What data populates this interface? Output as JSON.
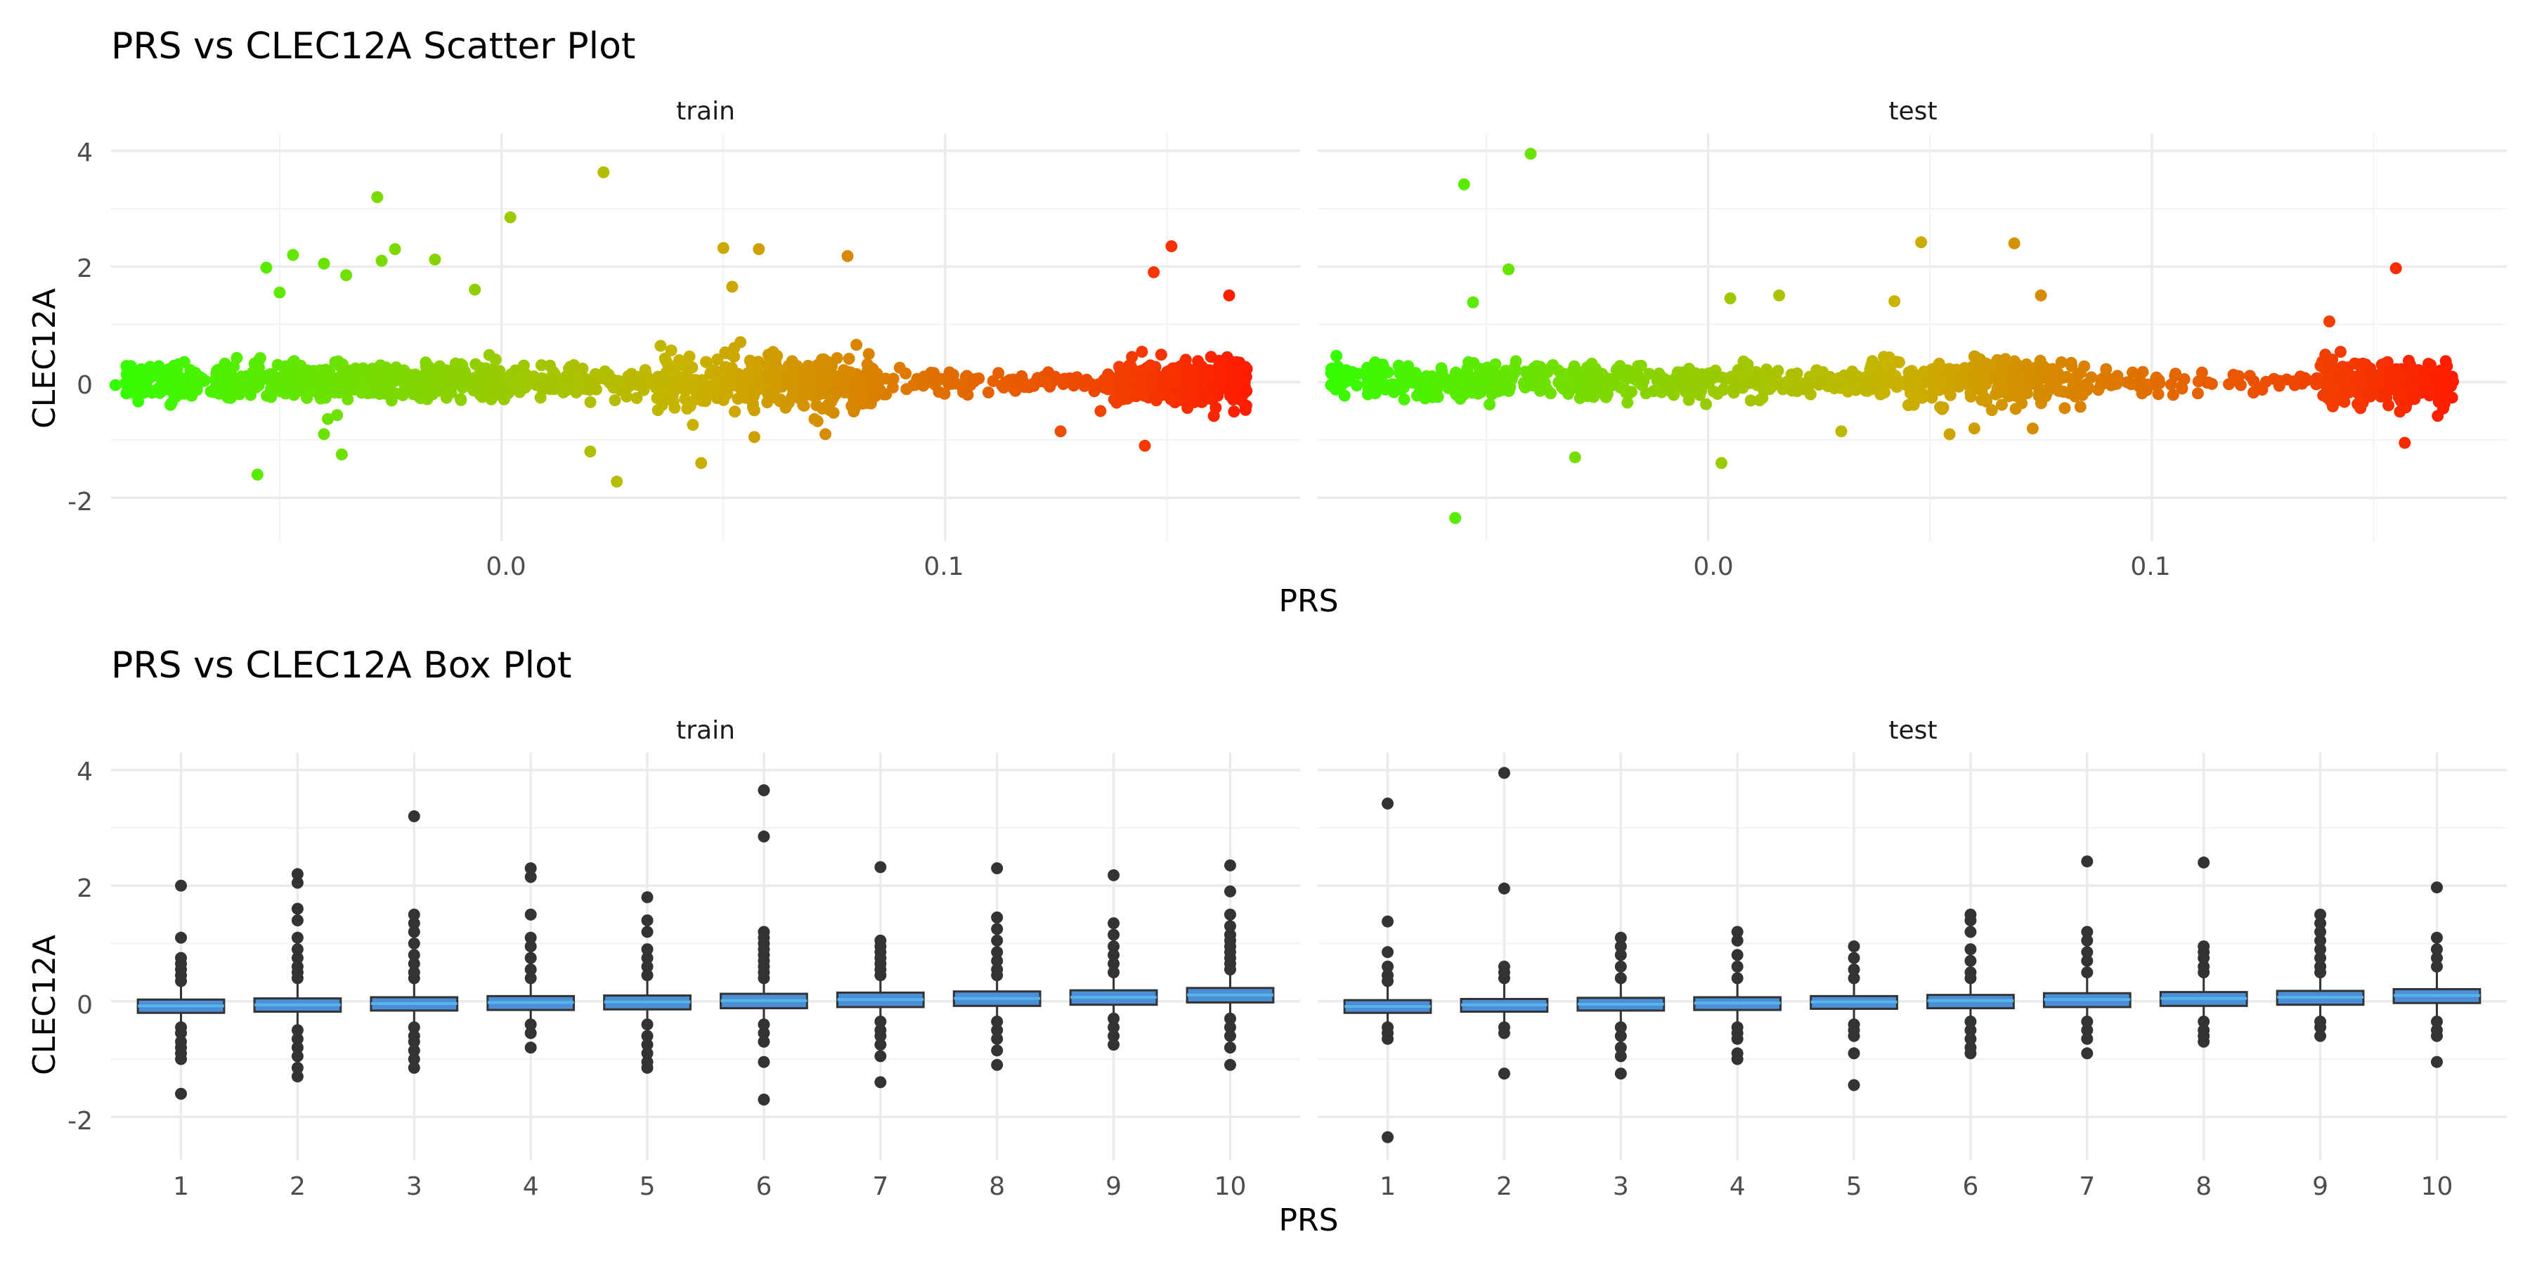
{
  "chart_data": [
    {
      "id": "scatter",
      "type": "scatter",
      "title": "PRS vs CLEC12A Scatter Plot",
      "xlabel": "PRS",
      "ylabel": "CLEC12A",
      "facets": [
        "train",
        "test"
      ],
      "xlim": [
        -0.088,
        0.18
      ],
      "ylim": [
        -2.75,
        4.3
      ],
      "x_ticks": [
        "0.0",
        "0.1"
      ],
      "y_ticks": [
        "4",
        "2",
        "0",
        "-2"
      ],
      "color_scale": {
        "low": "#33ff00",
        "mid": "#c8b400",
        "high": "#ff1a00"
      },
      "point_color": "#333333",
      "clusters": [
        [
          -0.085,
          -0.002,
          0.16,
          460
        ],
        [
          -0.002,
          0.022,
          0.14,
          110
        ],
        [
          0.022,
          0.035,
          0.11,
          45
        ],
        [
          0.035,
          0.085,
          0.22,
          360
        ],
        [
          0.085,
          0.125,
          0.1,
          80
        ],
        [
          0.125,
          0.138,
          0.08,
          20
        ],
        [
          0.138,
          0.168,
          0.18,
          380
        ]
      ],
      "outliers": {
        "train": [
          [
            -0.087,
            -0.05
          ],
          [
            -0.053,
            1.98
          ],
          [
            -0.05,
            1.55
          ],
          [
            -0.047,
            2.2
          ],
          [
            -0.04,
            2.05
          ],
          [
            -0.035,
            1.85
          ],
          [
            -0.028,
            3.2
          ],
          [
            -0.027,
            2.1
          ],
          [
            -0.024,
            2.3
          ],
          [
            -0.015,
            2.12
          ],
          [
            -0.006,
            1.6
          ],
          [
            0.002,
            2.85
          ],
          [
            -0.055,
            -1.6
          ],
          [
            -0.036,
            -1.25
          ],
          [
            0.023,
            3.63
          ],
          [
            0.026,
            -1.72
          ],
          [
            0.05,
            2.32
          ],
          [
            0.052,
            1.65
          ],
          [
            0.058,
            2.3
          ],
          [
            0.045,
            -1.4
          ],
          [
            0.057,
            -0.95
          ],
          [
            0.078,
            2.18
          ],
          [
            0.073,
            -0.9
          ],
          [
            0.151,
            2.35
          ],
          [
            0.147,
            1.9
          ],
          [
            0.164,
            1.5
          ],
          [
            0.145,
            -1.1
          ],
          [
            0.135,
            -0.5
          ],
          [
            0.126,
            -0.85
          ],
          [
            0.02,
            -1.2
          ],
          [
            -0.04,
            -0.9
          ]
        ],
        "test": [
          [
            -0.085,
            -0.05
          ],
          [
            -0.055,
            3.42
          ],
          [
            -0.04,
            3.95
          ],
          [
            -0.045,
            1.95
          ],
          [
            -0.053,
            1.38
          ],
          [
            -0.057,
            -2.35
          ],
          [
            -0.03,
            -1.3
          ],
          [
            0.016,
            1.5
          ],
          [
            0.005,
            1.45
          ],
          [
            0.003,
            -1.4
          ],
          [
            0.042,
            1.4
          ],
          [
            0.048,
            2.42
          ],
          [
            0.069,
            2.4
          ],
          [
            0.075,
            1.5
          ],
          [
            0.155,
            1.97
          ],
          [
            0.157,
            -1.05
          ],
          [
            0.03,
            -0.85
          ],
          [
            0.06,
            -0.8
          ],
          [
            0.14,
            1.05
          ],
          [
            0.147,
            -0.45
          ]
        ]
      }
    },
    {
      "id": "box",
      "type": "box",
      "title": "PRS vs CLEC12A Box Plot",
      "xlabel": "PRS",
      "ylabel": "CLEC12A",
      "facets": [
        "train",
        "test"
      ],
      "categories": [
        "1",
        "2",
        "3",
        "4",
        "5",
        "6",
        "7",
        "8",
        "9",
        "10"
      ],
      "ylim": [
        -2.75,
        4.3
      ],
      "y_ticks": [
        "4",
        "2",
        "0",
        "-2"
      ],
      "box_fill": "#4d8fd6",
      "box_stroke": "#333333",
      "median_color": "#56B4E9",
      "point_color": "#333333",
      "series": [
        {
          "name": "train",
          "boxes": [
            [
              -0.2,
              -0.08,
              0.03
            ],
            [
              -0.18,
              -0.06,
              0.05
            ],
            [
              -0.16,
              -0.04,
              0.07
            ],
            [
              -0.15,
              -0.02,
              0.09
            ],
            [
              -0.14,
              -0.01,
              0.1
            ],
            [
              -0.12,
              0.01,
              0.13
            ],
            [
              -0.1,
              0.03,
              0.15
            ],
            [
              -0.08,
              0.05,
              0.17
            ],
            [
              -0.06,
              0.07,
              0.19
            ],
            [
              -0.02,
              0.11,
              0.23
            ]
          ],
          "outliers": [
            [
              2.0,
              1.1,
              0.75,
              0.65,
              0.55,
              0.45,
              0.35,
              -0.45,
              -0.55,
              -0.7,
              -0.8,
              -0.9,
              -1.0,
              -1.6
            ],
            [
              2.2,
              2.05,
              1.6,
              1.4,
              1.1,
              0.9,
              0.75,
              0.6,
              0.5,
              0.4,
              -0.5,
              -0.65,
              -0.8,
              -0.95,
              -1.15,
              -1.3
            ],
            [
              3.2,
              1.5,
              1.35,
              1.2,
              1.0,
              0.8,
              0.65,
              0.5,
              0.4,
              -0.45,
              -0.6,
              -0.7,
              -0.85,
              -1.0,
              -1.15
            ],
            [
              2.3,
              2.15,
              1.5,
              1.1,
              0.95,
              0.75,
              0.55,
              0.4,
              -0.4,
              -0.55,
              -0.8
            ],
            [
              1.8,
              1.4,
              1.2,
              0.9,
              0.75,
              0.6,
              0.45,
              -0.4,
              -0.6,
              -0.75,
              -0.9,
              -1.05,
              -1.15
            ],
            [
              3.65,
              2.85,
              1.2,
              1.1,
              1.0,
              0.9,
              0.8,
              0.7,
              0.6,
              0.5,
              0.4,
              -0.4,
              -0.55,
              -0.7,
              -1.05,
              -1.7
            ],
            [
              2.32,
              1.05,
              0.95,
              0.85,
              0.75,
              0.65,
              0.55,
              0.45,
              -0.35,
              -0.5,
              -0.6,
              -0.75,
              -0.95,
              -1.4
            ],
            [
              2.3,
              1.45,
              1.25,
              1.05,
              0.85,
              0.7,
              0.55,
              0.45,
              -0.35,
              -0.5,
              -0.65,
              -0.85,
              -1.1
            ],
            [
              2.18,
              1.35,
              1.15,
              0.95,
              0.8,
              0.65,
              0.5,
              -0.3,
              -0.45,
              -0.6,
              -0.75
            ],
            [
              2.35,
              1.9,
              1.5,
              1.3,
              1.15,
              1.05,
              0.95,
              0.85,
              0.75,
              0.65,
              0.55,
              -0.3,
              -0.45,
              -0.6,
              -0.8,
              -1.1
            ]
          ]
        },
        {
          "name": "test",
          "boxes": [
            [
              -0.2,
              -0.09,
              0.02
            ],
            [
              -0.18,
              -0.06,
              0.04
            ],
            [
              -0.16,
              -0.05,
              0.06
            ],
            [
              -0.15,
              -0.03,
              0.07
            ],
            [
              -0.13,
              -0.01,
              0.09
            ],
            [
              -0.12,
              0.01,
              0.11
            ],
            [
              -0.1,
              0.03,
              0.14
            ],
            [
              -0.08,
              0.05,
              0.16
            ],
            [
              -0.06,
              0.07,
              0.18
            ],
            [
              -0.03,
              0.1,
              0.21
            ]
          ],
          "outliers": [
            [
              3.42,
              1.38,
              0.85,
              0.6,
              0.45,
              0.35,
              -0.45,
              -0.55,
              -0.65,
              -2.35
            ],
            [
              3.95,
              1.95,
              0.6,
              0.5,
              0.4,
              -0.45,
              -0.55,
              -1.25
            ],
            [
              1.1,
              0.95,
              0.8,
              0.6,
              0.4,
              -0.45,
              -0.6,
              -0.8,
              -0.95,
              -1.25
            ],
            [
              1.2,
              1.05,
              0.8,
              0.6,
              0.4,
              -0.45,
              -0.55,
              -0.65,
              -0.9,
              -1.0
            ],
            [
              0.95,
              0.75,
              0.55,
              0.4,
              -0.4,
              -0.5,
              -0.6,
              -0.9,
              -1.45
            ],
            [
              1.5,
              1.4,
              1.2,
              0.9,
              0.7,
              0.5,
              0.4,
              -0.35,
              -0.5,
              -0.65,
              -0.8,
              -0.9
            ],
            [
              2.42,
              1.2,
              1.05,
              0.85,
              0.7,
              0.5,
              -0.35,
              -0.5,
              -0.65,
              -0.9
            ],
            [
              2.4,
              0.95,
              0.85,
              0.75,
              0.6,
              0.5,
              -0.35,
              -0.5,
              -0.6,
              -0.7
            ],
            [
              1.5,
              1.35,
              1.2,
              1.05,
              0.9,
              0.75,
              0.6,
              0.5,
              -0.35,
              -0.45,
              -0.6
            ],
            [
              1.97,
              1.1,
              0.9,
              0.75,
              0.6,
              -0.35,
              -0.5,
              -0.6,
              -1.05
            ]
          ]
        }
      ]
    }
  ]
}
